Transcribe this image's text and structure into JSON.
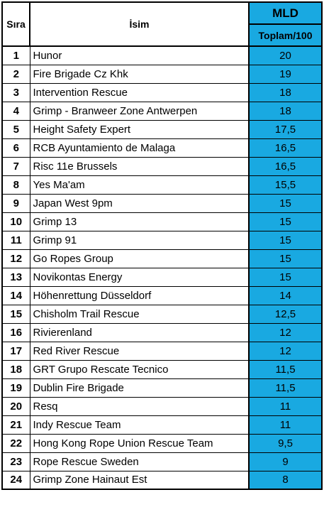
{
  "header": {
    "rank_label": "Sıra",
    "name_label": "İsim",
    "group_label": "MLD",
    "score_label": "Toplam/100"
  },
  "rows": [
    {
      "rank": "1",
      "name": "Hunor",
      "score": "20"
    },
    {
      "rank": "2",
      "name": "Fire Brigade Cz Khk",
      "score": "19"
    },
    {
      "rank": "3",
      "name": "Intervention Rescue",
      "score": "18"
    },
    {
      "rank": "4",
      "name": "Grimp - Branweer Zone Antwerpen",
      "score": "18"
    },
    {
      "rank": "5",
      "name": "Height Safety Expert",
      "score": "17,5"
    },
    {
      "rank": "6",
      "name": "RCB Ayuntamiento de Malaga",
      "score": "16,5"
    },
    {
      "rank": "7",
      "name": "Risc 11e Brussels",
      "score": "16,5"
    },
    {
      "rank": "8",
      "name": "Yes Ma'am",
      "score": "15,5"
    },
    {
      "rank": "9",
      "name": "Japan West 9pm",
      "score": "15"
    },
    {
      "rank": "10",
      "name": "Grimp 13",
      "score": "15"
    },
    {
      "rank": "11",
      "name": "Grimp 91",
      "score": "15"
    },
    {
      "rank": "12",
      "name": "Go Ropes Group",
      "score": "15"
    },
    {
      "rank": "13",
      "name": "Novikontas Energy",
      "score": "15"
    },
    {
      "rank": "14",
      "name": "Höhenrettung Düsseldorf",
      "score": "14"
    },
    {
      "rank": "15",
      "name": "Chisholm Trail Rescue",
      "score": "12,5"
    },
    {
      "rank": "16",
      "name": "Rivierenland",
      "score": "12"
    },
    {
      "rank": "17",
      "name": "Red River Rescue",
      "score": "12"
    },
    {
      "rank": "18",
      "name": "GRT Grupo Rescate Tecnico",
      "score": "11,5"
    },
    {
      "rank": "19",
      "name": "Dublin Fire Brigade",
      "score": "11,5"
    },
    {
      "rank": "20",
      "name": "Resq",
      "score": "11"
    },
    {
      "rank": "21",
      "name": "Indy Rescue Team",
      "score": "11"
    },
    {
      "rank": "22",
      "name": "Hong Kong Rope Union Rescue Team",
      "score": "9,5"
    },
    {
      "rank": "23",
      "name": "Rope Rescue Sweden",
      "score": "9"
    },
    {
      "rank": "24",
      "name": "Grimp Zone Hainaut Est",
      "score": "8"
    }
  ],
  "colors": {
    "score_column_background": "#19a9e1",
    "border": "#000000"
  }
}
